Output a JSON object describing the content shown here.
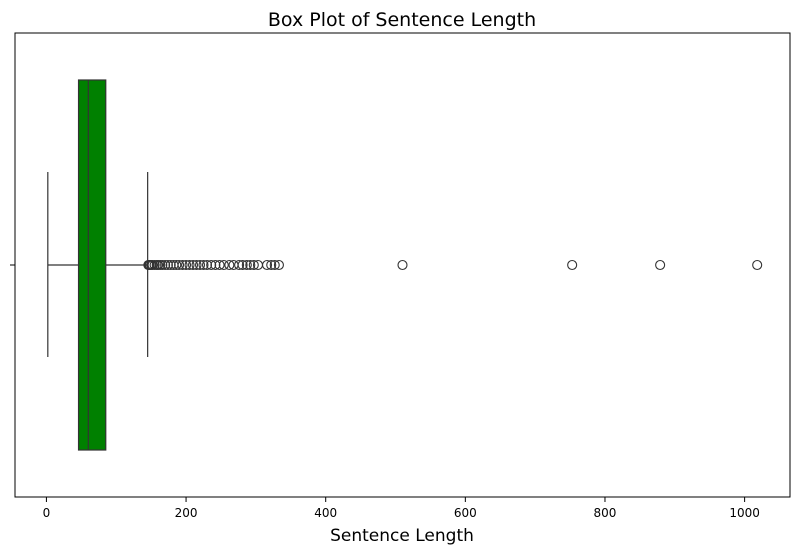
{
  "chart_data": {
    "type": "box",
    "title": "Box Plot of Sentence Length",
    "xlabel": "Sentence Length",
    "ylabel": "",
    "xlim": [
      -45,
      1065
    ],
    "xticks": [
      0,
      200,
      400,
      600,
      800,
      1000
    ],
    "grid": false,
    "orientation": "horizontal",
    "box": {
      "whisker_low": 2,
      "q1": 46,
      "median": 60,
      "q3": 85,
      "whisker_high": 145,
      "color": "#008000",
      "edge_color": "#333333"
    },
    "outliers": [
      146,
      147,
      148,
      150,
      152,
      155,
      158,
      160,
      163,
      166,
      170,
      174,
      178,
      182,
      186,
      190,
      195,
      200,
      205,
      210,
      215,
      220,
      225,
      230,
      236,
      242,
      248,
      254,
      262,
      268,
      276,
      281,
      287,
      292,
      297,
      303,
      316,
      322,
      327,
      333,
      510,
      753,
      879,
      1018
    ]
  }
}
